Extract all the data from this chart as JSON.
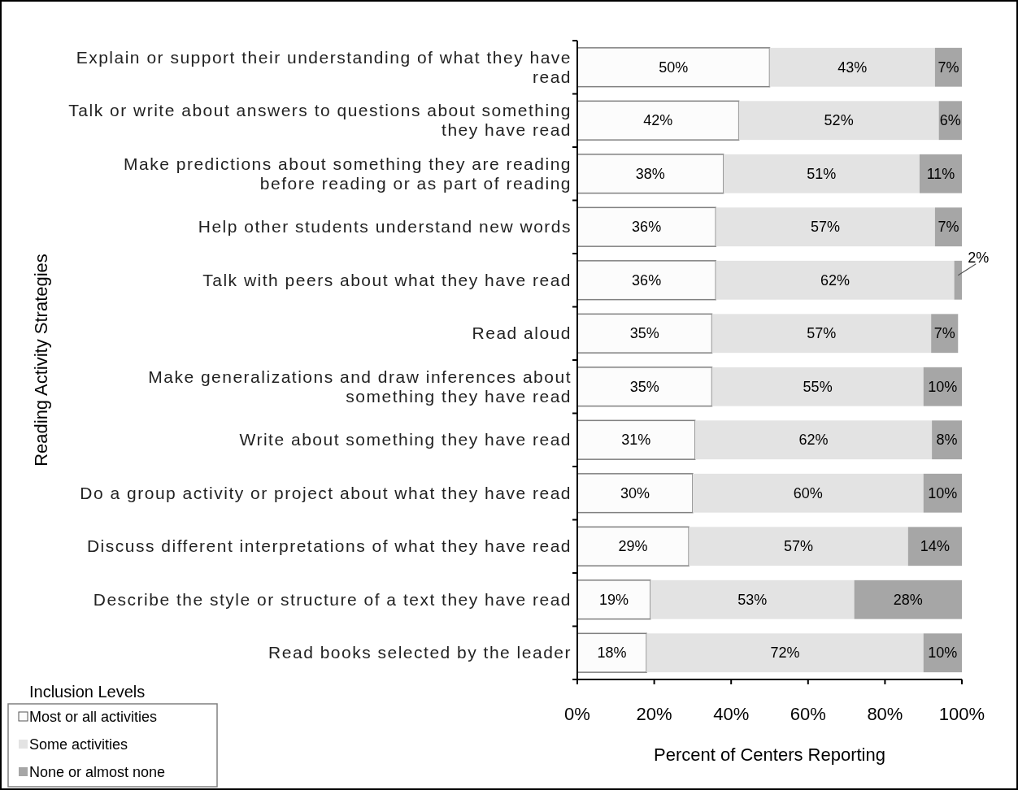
{
  "chart_data": {
    "type": "bar",
    "orientation": "horizontal",
    "stacked": true,
    "ylabel": "Reading Activity Strategies",
    "xlabel": "Percent of Centers Reporting",
    "legend_title": "Inclusion Levels",
    "legend": "bottom left",
    "categories": [
      "Explain or support their understanding of what they have read",
      "Talk or write about answers to questions about something they have read",
      "Make predictions about something they are reading before reading or as part of reading",
      "Help other students understand new words",
      "Talk with peers about what they have read",
      "Read aloud",
      "Make generalizations and draw inferences about something they have read",
      "Write about something they have read",
      "Do a group activity or project about what they have read",
      "Discuss different interpretations of what they have read",
      "Describe the style or structure of a text they have read",
      "Read books selected by the leader"
    ],
    "series": [
      {
        "name": "Most or all activities",
        "color": "#fcfcfc",
        "values": [
          50,
          42,
          38,
          36,
          36,
          35,
          35,
          30.6,
          30,
          29,
          19,
          18
        ],
        "value_labels": [
          "50%",
          "42%",
          "38%",
          "36%",
          "36%",
          "35%",
          "35%",
          "31%",
          "30%",
          "29%",
          "19%",
          "18%"
        ]
      },
      {
        "name": "Some activities",
        "color": "#e3e3e3",
        "values": [
          43,
          52,
          51,
          57,
          62,
          57,
          55,
          61.6,
          60,
          57,
          53,
          72
        ],
        "value_labels": [
          "43%",
          "52%",
          "51%",
          "57%",
          "62%",
          "57%",
          "55%",
          "62%",
          "60%",
          "57%",
          "53%",
          "72%"
        ]
      },
      {
        "name": "None or almost none",
        "color": "#a6a6a6",
        "values": [
          7,
          6,
          11,
          7,
          2,
          7,
          10,
          7.8,
          10,
          14,
          28,
          10
        ],
        "value_labels": [
          "7%",
          "6%",
          "11%",
          "7%",
          "2%",
          "7%",
          "10%",
          "8%",
          "10%",
          "14%",
          "28%",
          "10%"
        ]
      }
    ],
    "xlim": [
      0,
      100
    ],
    "xticks": [
      {
        "value": 0,
        "label": "0%"
      },
      {
        "value": 20,
        "label": "20%"
      },
      {
        "value": 40,
        "label": "40%"
      },
      {
        "value": 60,
        "label": "60%"
      },
      {
        "value": 80,
        "label": "80%"
      },
      {
        "value": 100,
        "label": "100%"
      }
    ]
  }
}
